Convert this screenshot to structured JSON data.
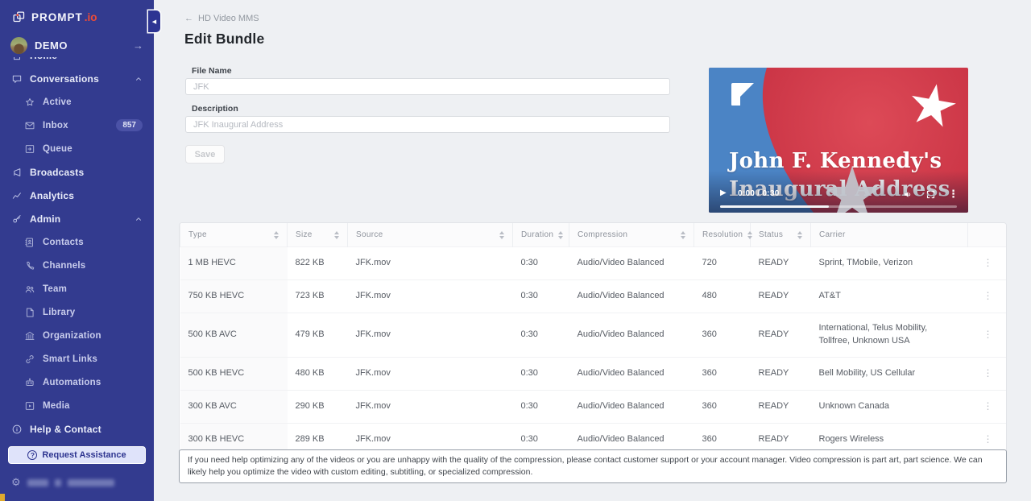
{
  "app": {
    "brand": "PROMPT",
    "brand_suffix": ".io",
    "workspace": "DEMO"
  },
  "glyphs": {
    "play": "▶",
    "kebab": "⋮",
    "back_arrow": "←",
    "forward_arrow": "→",
    "collapse": "◀",
    "gear": "⚙",
    "question": "?"
  },
  "colors": {
    "sidebar": "#333b8f",
    "accent_red": "#ee4b36",
    "sort_active": "#3c4cc3",
    "video_red": "#c93344",
    "video_blue": "#4b84c5"
  },
  "sidebar": {
    "items": [
      {
        "label": "Home",
        "icon": "home",
        "level": "top",
        "clipped": "clipped"
      },
      {
        "label": "Conversations",
        "icon": "chat",
        "level": "top",
        "chevron": true
      },
      {
        "label": "Active",
        "icon": "star",
        "level": "sub"
      },
      {
        "label": "Inbox",
        "icon": "mail",
        "level": "sub",
        "badge": "857"
      },
      {
        "label": "Queue",
        "icon": "queue",
        "level": "sub"
      },
      {
        "label": "Broadcasts",
        "icon": "megaphone",
        "level": "top"
      },
      {
        "label": "Analytics",
        "icon": "chart",
        "level": "top"
      },
      {
        "label": "Admin",
        "icon": "key",
        "level": "top",
        "chevron": true
      },
      {
        "label": "Contacts",
        "icon": "contacts",
        "level": "sub"
      },
      {
        "label": "Channels",
        "icon": "phone",
        "level": "sub"
      },
      {
        "label": "Team",
        "icon": "team",
        "level": "sub"
      },
      {
        "label": "Library",
        "icon": "library",
        "level": "sub"
      },
      {
        "label": "Organization",
        "icon": "bank",
        "level": "sub"
      },
      {
        "label": "Smart Links",
        "icon": "link",
        "level": "sub"
      },
      {
        "label": "Automations",
        "icon": "robot",
        "level": "sub"
      },
      {
        "label": "Media",
        "icon": "media",
        "level": "sub"
      },
      {
        "label": "Help & Contact",
        "icon": "info",
        "level": "top"
      }
    ],
    "assist_button": "Request Assistance"
  },
  "header": {
    "back": "HD Video MMS",
    "title": "Edit Bundle"
  },
  "form": {
    "file_name_label": "File Name",
    "file_name_value": "JFK",
    "description_label": "Description",
    "description_value": "JFK Inaugural Address",
    "save_label": "Save"
  },
  "video": {
    "title_line1": "John F. Kennedy's",
    "title_line2": "Inaugural Address",
    "time": "0:00 / 0:30"
  },
  "table": {
    "columns": [
      {
        "label": "Type",
        "sortable": true,
        "sorted": "desc"
      },
      {
        "label": "Size",
        "sortable": true
      },
      {
        "label": "Source",
        "sortable": true
      },
      {
        "label": "Duration",
        "sortable": true
      },
      {
        "label": "Compression",
        "sortable": true
      },
      {
        "label": "Resolution",
        "sortable": true
      },
      {
        "label": "Status",
        "sortable": true
      },
      {
        "label": "Carrier"
      },
      {
        "label": ""
      }
    ],
    "rows": [
      {
        "type": "1 MB HEVC",
        "size": "822 KB",
        "source": "JFK.mov",
        "duration": "0:30",
        "compression": "Audio/Video Balanced",
        "resolution": "720",
        "status": "READY",
        "carrier": "Sprint, TMobile, Verizon"
      },
      {
        "type": "750 KB HEVC",
        "size": "723 KB",
        "source": "JFK.mov",
        "duration": "0:30",
        "compression": "Audio/Video Balanced",
        "resolution": "480",
        "status": "READY",
        "carrier": "AT&T"
      },
      {
        "type": "500 KB AVC",
        "size": "479 KB",
        "source": "JFK.mov",
        "duration": "0:30",
        "compression": "Audio/Video Balanced",
        "resolution": "360",
        "status": "READY",
        "carrier": "International, Telus Mobility, Tollfree, Unknown USA"
      },
      {
        "type": "500 KB HEVC",
        "size": "480 KB",
        "source": "JFK.mov",
        "duration": "0:30",
        "compression": "Audio/Video Balanced",
        "resolution": "360",
        "status": "READY",
        "carrier": "Bell Mobility, US Cellular"
      },
      {
        "type": "300 KB AVC",
        "size": "290 KB",
        "source": "JFK.mov",
        "duration": "0:30",
        "compression": "Audio/Video Balanced",
        "resolution": "360",
        "status": "READY",
        "carrier": "Unknown Canada"
      },
      {
        "type": "300 KB HEVC",
        "size": "289 KB",
        "source": "JFK.mov",
        "duration": "0:30",
        "compression": "Audio/Video Balanced",
        "resolution": "360",
        "status": "READY",
        "carrier": "Rogers Wireless"
      }
    ]
  },
  "note": "If you need help optimizing any of the videos or you are unhappy with the quality of the compression, please contact customer support or your account manager. Video compression is part art, part science. We can likely help you optimize the video with custom editing, subtitling, or specialized compression."
}
